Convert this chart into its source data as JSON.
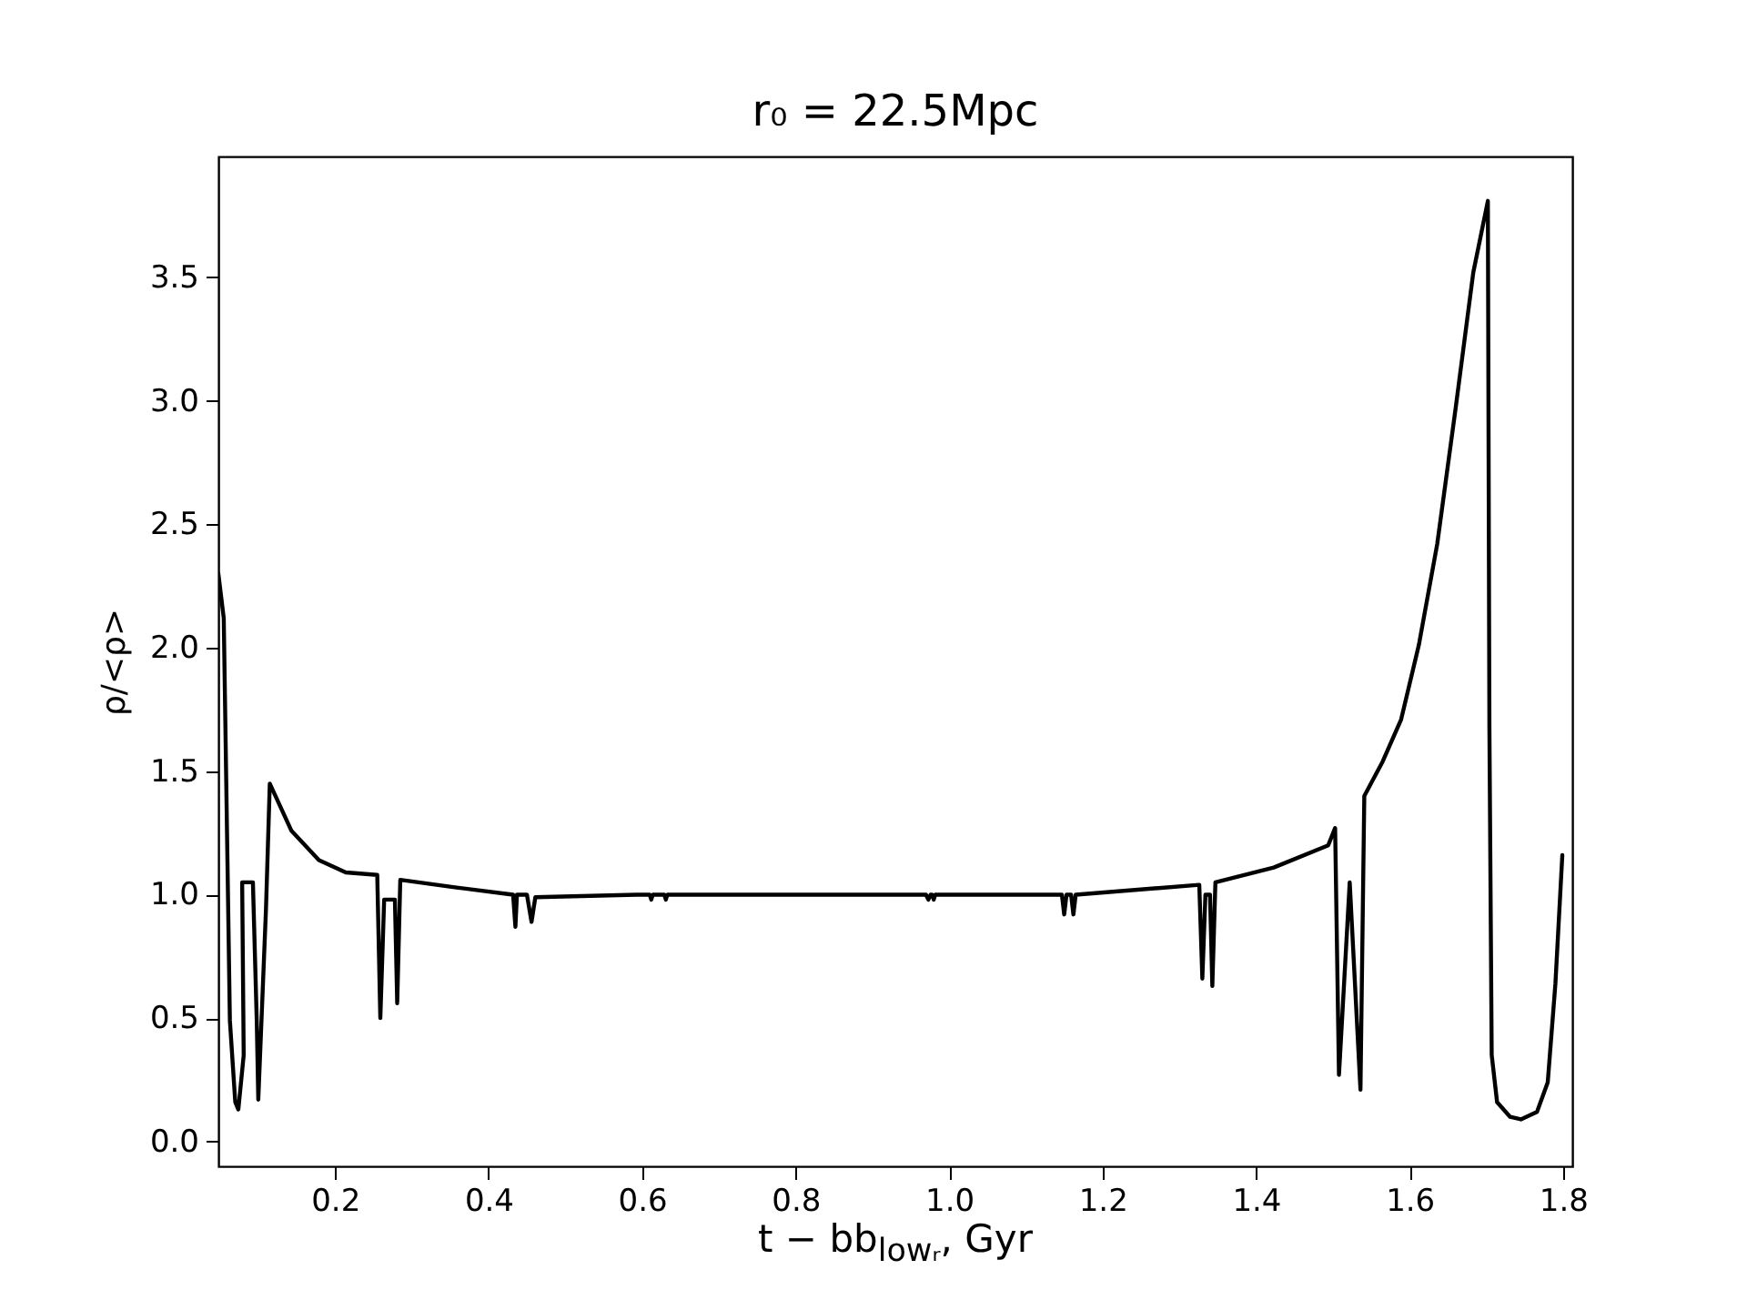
{
  "chart_data": {
    "type": "line",
    "title": "r₀ = 22.5Mpc",
    "xlabel": "t − bb$_{lowᵣ}$, Gyr",
    "ylabel": "ρ/<ρ>",
    "x": [
      0.048,
      0.055,
      0.063,
      0.07,
      0.074,
      0.081,
      0.079,
      0.093,
      0.098,
      0.1,
      0.11,
      0.115,
      0.143,
      0.179,
      0.214,
      0.255,
      0.259,
      0.264,
      0.278,
      0.281,
      0.285,
      0.356,
      0.432,
      0.435,
      0.437,
      0.45,
      0.456,
      0.461,
      0.593,
      0.61,
      0.612,
      0.614,
      0.629,
      0.631,
      0.633,
      0.97,
      0.973,
      0.976,
      0.978,
      0.98,
      0.982,
      1.147,
      1.15,
      1.153,
      1.159,
      1.162,
      1.165,
      1.326,
      1.33,
      1.334,
      1.34,
      1.343,
      1.347,
      1.423,
      1.494,
      1.503,
      1.508,
      1.522,
      1.536,
      1.541,
      1.565,
      1.589,
      1.612,
      1.636,
      1.66,
      1.683,
      1.702,
      1.704,
      1.707,
      1.714,
      1.731,
      1.745,
      1.766,
      1.78,
      1.79,
      1.799
    ],
    "series": [
      {
        "color": "#000000",
        "values": [
          2.3,
          2.12,
          0.49,
          0.16,
          0.13,
          0.35,
          1.05,
          1.05,
          0.49,
          0.17,
          0.94,
          1.45,
          1.26,
          1.14,
          1.09,
          1.08,
          0.5,
          0.98,
          0.98,
          0.56,
          1.06,
          1.03,
          1.0,
          0.87,
          1.0,
          1.0,
          0.89,
          0.99,
          1.0,
          1.0,
          0.98,
          1.0,
          1.0,
          0.98,
          1.0,
          1.0,
          0.98,
          1.0,
          1.0,
          0.98,
          1.0,
          1.0,
          0.92,
          1.0,
          1.0,
          0.92,
          1.0,
          1.04,
          0.66,
          1.0,
          1.0,
          0.63,
          1.05,
          1.11,
          1.2,
          1.27,
          0.27,
          1.05,
          0.21,
          1.4,
          1.54,
          1.71,
          2.01,
          2.42,
          2.97,
          3.52,
          3.81,
          1.68,
          0.35,
          0.16,
          0.1,
          0.09,
          0.12,
          0.24,
          0.64,
          1.16
        ]
      }
    ],
    "xlim": [
      0.048,
      1.812
    ],
    "ylim": [
      -0.1,
      3.99
    ],
    "xticks": [
      0.2,
      0.4,
      0.6,
      0.8,
      {
        "value": 1,
        "label": "1.0"
      },
      1.2,
      1.4,
      1.6,
      1.8
    ],
    "yticks": [
      {
        "value": 0,
        "label": "0.0"
      },
      0.5,
      {
        "value": 1,
        "label": "1.0"
      },
      1.5,
      {
        "value": 2,
        "label": "2.0"
      },
      2.5,
      {
        "value": 3,
        "label": "3.0"
      },
      3.5
    ],
    "grid": false,
    "marker": "none",
    "line_style": "solid"
  }
}
